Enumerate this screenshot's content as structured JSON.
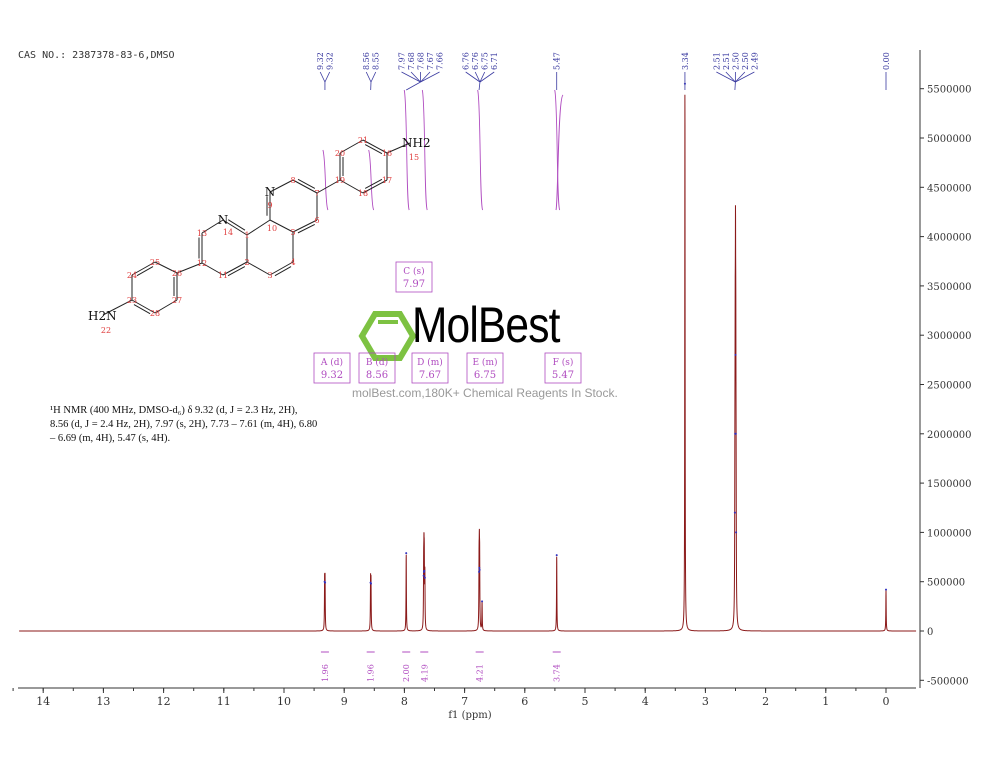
{
  "header": {
    "cas": "CAS NO.: 2387378-83-6,DMSO"
  },
  "description": {
    "line1": "¹H NMR (400 MHz, DMSO-d₆) δ 9.32 (d, J = 2.3 Hz, 2H),",
    "line2": "8.56 (d, J = 2.4 Hz, 2H), 7.97 (s, 2H), 7.73 – 7.61 (m, 4H), 6.80",
    "line3": "– 6.69 (m, 4H), 5.47 (s, 4H)."
  },
  "watermark": {
    "logo": "MolBest",
    "text": "molBest.com,180K+ Chemical Reagents In Stock."
  },
  "molecule": {
    "atoms": [
      "1",
      "2",
      "3",
      "4",
      "5",
      "6",
      "7",
      "8",
      "9",
      "10",
      "11",
      "12",
      "13",
      "14",
      "15",
      "16",
      "17",
      "18",
      "19",
      "20",
      "21",
      "23",
      "24",
      "25",
      "26",
      "27",
      "28",
      "22"
    ],
    "hetero": [
      "N",
      "N",
      "NH2",
      "H2N"
    ]
  },
  "colors": {
    "spectrum": "#8b1a1a",
    "integral": "#b04cc0",
    "label": "#3a3aa0",
    "atom_number": "#e04040",
    "axis": "#333333"
  },
  "chart_data": {
    "type": "line",
    "xlabel": "f1 (ppm)",
    "xlim": [
      14.4,
      -0.5
    ],
    "ylim": [
      -600000,
      5900000
    ],
    "x_ticks": [
      14,
      13,
      12,
      11,
      10,
      9,
      8,
      7,
      6,
      5,
      4,
      3,
      2,
      1,
      0
    ],
    "y_ticks": [
      -500000,
      0,
      500000,
      1000000,
      1500000,
      2000000,
      2500000,
      3000000,
      3500000,
      4000000,
      4500000,
      5000000,
      5500000
    ],
    "grid": false,
    "peaks": [
      {
        "ppm": 9.325,
        "height": 500000
      },
      {
        "ppm": 9.318,
        "height": 490000
      },
      {
        "ppm": 8.562,
        "height": 490000
      },
      {
        "ppm": 8.555,
        "height": 480000
      },
      {
        "ppm": 7.97,
        "height": 790000
      },
      {
        "ppm": 7.68,
        "height": 560000
      },
      {
        "ppm": 7.675,
        "height": 600000
      },
      {
        "ppm": 7.67,
        "height": 610000
      },
      {
        "ppm": 7.66,
        "height": 540000
      },
      {
        "ppm": 6.76,
        "height": 600000
      },
      {
        "ppm": 6.755,
        "height": 640000
      },
      {
        "ppm": 6.75,
        "height": 620000
      },
      {
        "ppm": 6.71,
        "height": 300000
      },
      {
        "ppm": 5.47,
        "height": 770000
      },
      {
        "ppm": 3.34,
        "height": 5550000
      },
      {
        "ppm": 2.51,
        "height": 1200000
      },
      {
        "ppm": 2.505,
        "height": 2000000
      },
      {
        "ppm": 2.5,
        "height": 2800000
      },
      {
        "ppm": 2.495,
        "height": 2000000
      },
      {
        "ppm": 2.49,
        "height": 1000000
      },
      {
        "ppm": 0.0,
        "height": 420000
      }
    ],
    "peak_labels": [
      {
        "group": [
          9.32,
          9.32
        ],
        "text": [
          "9.32",
          "9.32"
        ]
      },
      {
        "group": [
          8.56,
          8.55
        ],
        "text": [
          "8.56",
          "8.55"
        ]
      },
      {
        "group": [
          7.97,
          7.68,
          7.68,
          7.67,
          7.66
        ],
        "text": [
          "7.97",
          "7.68",
          "7.68",
          "7.67",
          "7.66"
        ]
      },
      {
        "group": [
          6.76,
          6.76,
          6.75,
          6.71
        ],
        "text": [
          "6.76",
          "6.76",
          "6.75",
          "6.71"
        ]
      },
      {
        "group": [
          5.47
        ],
        "text": [
          "5.47"
        ]
      },
      {
        "group": [
          3.34
        ],
        "text": [
          "3.34"
        ]
      },
      {
        "group": [
          2.51,
          2.51,
          2.5,
          2.5,
          2.49
        ],
        "text": [
          "2.51",
          "2.51",
          "2.50",
          "2.50",
          "2.49"
        ]
      },
      {
        "group": [
          0.0
        ],
        "text": [
          "0.00"
        ]
      }
    ],
    "integrals": [
      {
        "ppm": 9.32,
        "value": "1.96"
      },
      {
        "ppm": 8.56,
        "value": "1.96"
      },
      {
        "ppm": 7.97,
        "value": "2.00"
      },
      {
        "ppm": 7.67,
        "value": "4.19"
      },
      {
        "ppm": 6.75,
        "value": "4.21"
      },
      {
        "ppm": 5.47,
        "value": "3.74"
      }
    ],
    "multiplets": [
      {
        "id": "A",
        "type": "(d)",
        "ppm": "9.32"
      },
      {
        "id": "B",
        "type": "(d)",
        "ppm": "8.56"
      },
      {
        "id": "C",
        "type": "(s)",
        "ppm": "7.97"
      },
      {
        "id": "D",
        "type": "(m)",
        "ppm": "7.67"
      },
      {
        "id": "E",
        "type": "(m)",
        "ppm": "6.75"
      },
      {
        "id": "F",
        "type": "(s)",
        "ppm": "5.47"
      }
    ]
  }
}
